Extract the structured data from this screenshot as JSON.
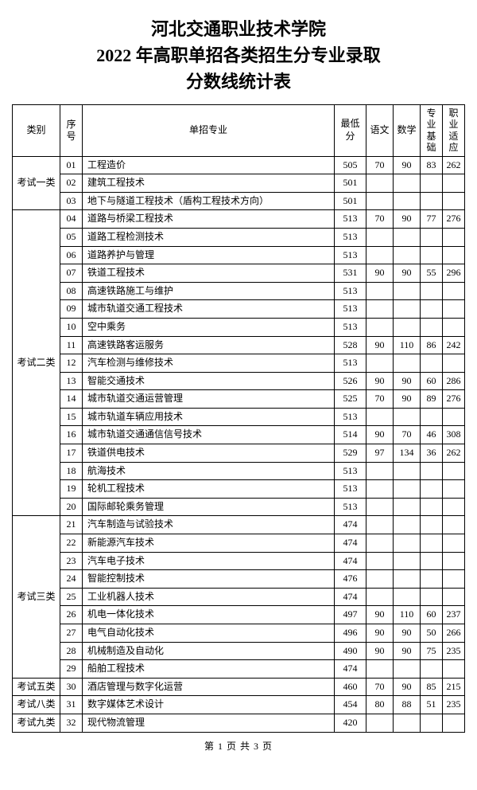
{
  "title_line1": "河北交通职业技术学院",
  "title_line2": "2022 年高职单招各类招生分专业录取",
  "title_line3": "分数线统计表",
  "headers": {
    "category": "类别",
    "num": "序号",
    "major": "单招专业",
    "min": "最低分",
    "chinese": "语文",
    "math": "数学",
    "basic": "专业基础",
    "vocation": "职业适应"
  },
  "categories": [
    {
      "name": "考试一类",
      "rowspan": 3
    },
    {
      "name": "考试二类",
      "rowspan": 17
    },
    {
      "name": "考试三类",
      "rowspan": 9
    },
    {
      "name": "考试五类",
      "rowspan": 1
    },
    {
      "name": "考试八类",
      "rowspan": 1
    },
    {
      "name": "考试九类",
      "rowspan": 1
    }
  ],
  "rows": [
    {
      "cat": 0,
      "n": "01",
      "m": "工程造价",
      "min": "505",
      "c": "70",
      "mt": "90",
      "b": "83",
      "v": "262"
    },
    {
      "cat": 0,
      "n": "02",
      "m": "建筑工程技术",
      "min": "501",
      "c": "",
      "mt": "",
      "b": "",
      "v": ""
    },
    {
      "cat": 0,
      "n": "03",
      "m": "地下与隧道工程技术（盾构工程技术方向）",
      "min": "501",
      "c": "",
      "mt": "",
      "b": "",
      "v": ""
    },
    {
      "cat": 1,
      "n": "04",
      "m": "道路与桥梁工程技术",
      "min": "513",
      "c": "70",
      "mt": "90",
      "b": "77",
      "v": "276"
    },
    {
      "cat": 1,
      "n": "05",
      "m": "道路工程检测技术",
      "min": "513",
      "c": "",
      "mt": "",
      "b": "",
      "v": ""
    },
    {
      "cat": 1,
      "n": "06",
      "m": "道路养护与管理",
      "min": "513",
      "c": "",
      "mt": "",
      "b": "",
      "v": ""
    },
    {
      "cat": 1,
      "n": "07",
      "m": "铁道工程技术",
      "min": "531",
      "c": "90",
      "mt": "90",
      "b": "55",
      "v": "296"
    },
    {
      "cat": 1,
      "n": "08",
      "m": "高速铁路施工与维护",
      "min": "513",
      "c": "",
      "mt": "",
      "b": "",
      "v": ""
    },
    {
      "cat": 1,
      "n": "09",
      "m": "城市轨道交通工程技术",
      "min": "513",
      "c": "",
      "mt": "",
      "b": "",
      "v": ""
    },
    {
      "cat": 1,
      "n": "10",
      "m": "空中乘务",
      "min": "513",
      "c": "",
      "mt": "",
      "b": "",
      "v": ""
    },
    {
      "cat": 1,
      "n": "11",
      "m": "高速铁路客运服务",
      "min": "528",
      "c": "90",
      "mt": "110",
      "b": "86",
      "v": "242"
    },
    {
      "cat": 1,
      "n": "12",
      "m": "汽车检测与维修技术",
      "min": "513",
      "c": "",
      "mt": "",
      "b": "",
      "v": ""
    },
    {
      "cat": 1,
      "n": "13",
      "m": "智能交通技术",
      "min": "526",
      "c": "90",
      "mt": "90",
      "b": "60",
      "v": "286"
    },
    {
      "cat": 1,
      "n": "14",
      "m": "城市轨道交通运营管理",
      "min": "525",
      "c": "70",
      "mt": "90",
      "b": "89",
      "v": "276"
    },
    {
      "cat": 1,
      "n": "15",
      "m": "城市轨道车辆应用技术",
      "min": "513",
      "c": "",
      "mt": "",
      "b": "",
      "v": ""
    },
    {
      "cat": 1,
      "n": "16",
      "m": "城市轨道交通通信信号技术",
      "min": "514",
      "c": "90",
      "mt": "70",
      "b": "46",
      "v": "308"
    },
    {
      "cat": 1,
      "n": "17",
      "m": "铁道供电技术",
      "min": "529",
      "c": "97",
      "mt": "134",
      "b": "36",
      "v": "262"
    },
    {
      "cat": 1,
      "n": "18",
      "m": "航海技术",
      "min": "513",
      "c": "",
      "mt": "",
      "b": "",
      "v": ""
    },
    {
      "cat": 1,
      "n": "19",
      "m": "轮机工程技术",
      "min": "513",
      "c": "",
      "mt": "",
      "b": "",
      "v": ""
    },
    {
      "cat": 1,
      "n": "20",
      "m": "国际邮轮乘务管理",
      "min": "513",
      "c": "",
      "mt": "",
      "b": "",
      "v": ""
    },
    {
      "cat": 2,
      "n": "21",
      "m": "汽车制造与试验技术",
      "min": "474",
      "c": "",
      "mt": "",
      "b": "",
      "v": ""
    },
    {
      "cat": 2,
      "n": "22",
      "m": "新能源汽车技术",
      "min": "474",
      "c": "",
      "mt": "",
      "b": "",
      "v": ""
    },
    {
      "cat": 2,
      "n": "23",
      "m": "汽车电子技术",
      "min": "474",
      "c": "",
      "mt": "",
      "b": "",
      "v": ""
    },
    {
      "cat": 2,
      "n": "24",
      "m": "智能控制技术",
      "min": "476",
      "c": "",
      "mt": "",
      "b": "",
      "v": ""
    },
    {
      "cat": 2,
      "n": "25",
      "m": "工业机器人技术",
      "min": "474",
      "c": "",
      "mt": "",
      "b": "",
      "v": ""
    },
    {
      "cat": 2,
      "n": "26",
      "m": "机电一体化技术",
      "min": "497",
      "c": "90",
      "mt": "110",
      "b": "60",
      "v": "237"
    },
    {
      "cat": 2,
      "n": "27",
      "m": "电气自动化技术",
      "min": "496",
      "c": "90",
      "mt": "90",
      "b": "50",
      "v": "266"
    },
    {
      "cat": 2,
      "n": "28",
      "m": "机械制造及自动化",
      "min": "490",
      "c": "90",
      "mt": "90",
      "b": "75",
      "v": "235"
    },
    {
      "cat": 2,
      "n": "29",
      "m": "船舶工程技术",
      "min": "474",
      "c": "",
      "mt": "",
      "b": "",
      "v": ""
    },
    {
      "cat": 3,
      "n": "30",
      "m": "酒店管理与数字化运营",
      "min": "460",
      "c": "70",
      "mt": "90",
      "b": "85",
      "v": "215"
    },
    {
      "cat": 4,
      "n": "31",
      "m": "数字媒体艺术设计",
      "min": "454",
      "c": "80",
      "mt": "88",
      "b": "51",
      "v": "235"
    },
    {
      "cat": 5,
      "n": "32",
      "m": "现代物流管理",
      "min": "420",
      "c": "",
      "mt": "",
      "b": "",
      "v": ""
    }
  ],
  "footer": "第 1 页 共 3 页"
}
